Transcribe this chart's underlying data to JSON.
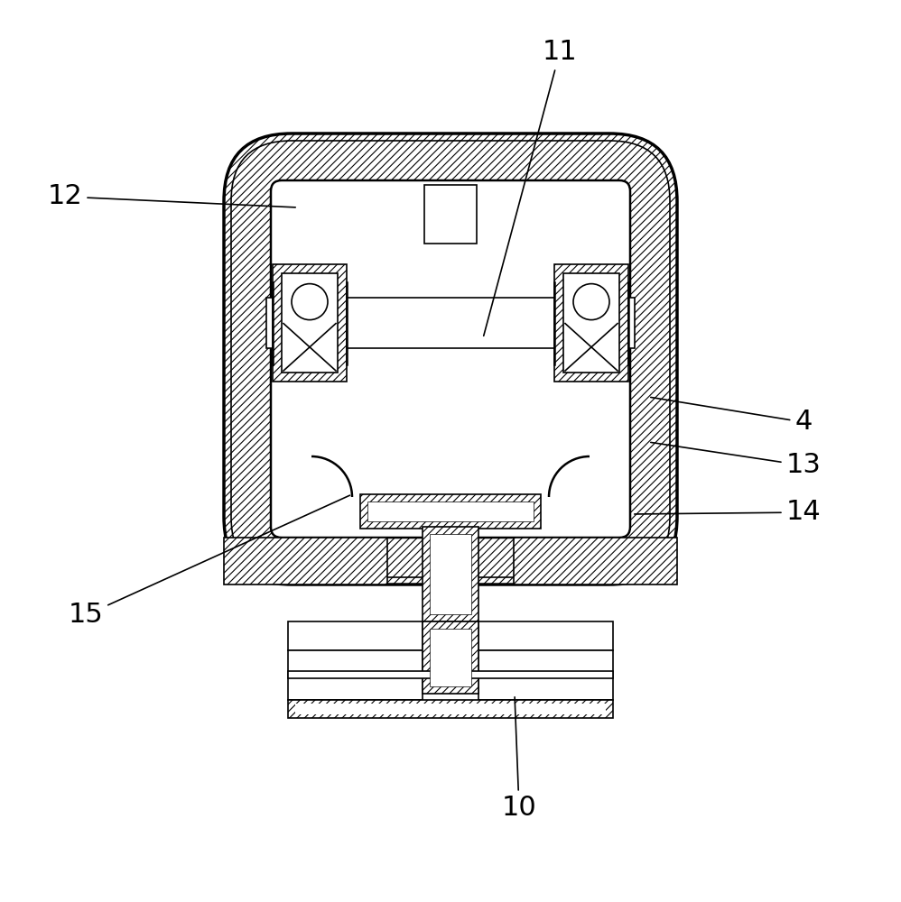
{
  "bg_color": "#ffffff",
  "line_color": "#000000",
  "figsize": [
    9.98,
    10.0
  ],
  "dpi": 100,
  "label_fontsize": 22
}
